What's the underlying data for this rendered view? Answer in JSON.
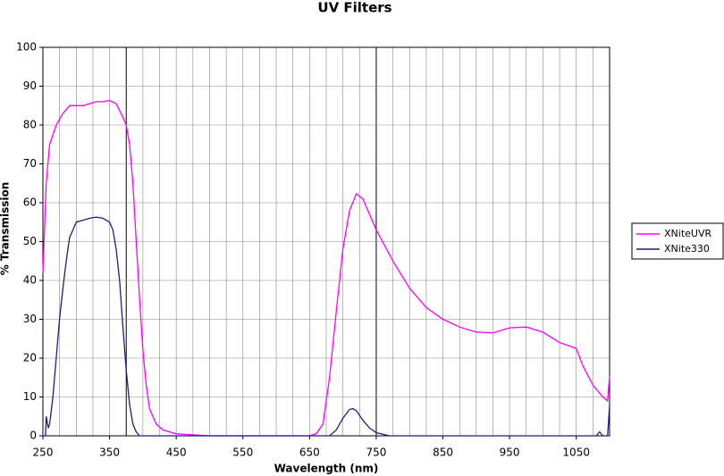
{
  "chart_data": {
    "type": "line",
    "title": "UV Filters",
    "x_label": "Wavelength (nm)",
    "y_label": "% Transmission",
    "xlim": [
      250,
      1100
    ],
    "ylim": [
      0,
      100
    ],
    "xticks": [
      250,
      350,
      450,
      550,
      650,
      750,
      850,
      950,
      1050
    ],
    "yticks": [
      0,
      10,
      20,
      30,
      40,
      50,
      60,
      70,
      80,
      90,
      100
    ],
    "xgrid_step": 25,
    "xgrid_major_step": 375,
    "grid": true,
    "legend": "right",
    "series": [
      {
        "name": "XNiteUVR",
        "color": "#ff00ff",
        "x": [
          250,
          255,
          260,
          270,
          280,
          290,
          300,
          310,
          320,
          330,
          340,
          350,
          360,
          370,
          375,
          380,
          385,
          390,
          395,
          400,
          405,
          410,
          420,
          430,
          450,
          500,
          600,
          650,
          660,
          670,
          680,
          690,
          700,
          710,
          720,
          730,
          740,
          750,
          775,
          800,
          825,
          850,
          875,
          900,
          925,
          950,
          975,
          1000,
          1025,
          1050,
          1060,
          1075,
          1090,
          1097,
          1100
        ],
        "values": [
          42,
          65,
          75,
          80,
          83,
          85,
          85,
          85,
          85.5,
          86,
          86,
          86.3,
          85.5,
          82,
          80,
          75,
          65,
          50,
          35,
          22,
          13,
          7,
          3,
          1.5,
          0.5,
          0,
          0,
          0,
          0.5,
          3,
          15,
          32,
          48,
          58,
          62.3,
          61,
          57,
          53,
          45,
          38,
          33,
          30,
          28,
          26.7,
          26.5,
          27.8,
          28,
          26.7,
          24,
          22.5,
          18,
          13,
          10,
          9,
          15.5
        ]
      },
      {
        "name": "XNite330",
        "color": "#1f1f7a",
        "x": [
          250,
          254,
          255,
          258,
          260,
          265,
          270,
          275,
          280,
          285,
          290,
          295,
          300,
          310,
          320,
          330,
          340,
          350,
          355,
          360,
          365,
          370,
          375,
          380,
          385,
          390,
          395,
          400,
          650,
          680,
          690,
          700,
          710,
          715,
          720,
          730,
          740,
          750,
          770,
          1080,
          1085,
          1090,
          1097,
          1100
        ],
        "values": [
          0,
          0,
          5,
          2,
          3,
          10,
          20,
          30,
          38,
          45,
          51,
          53,
          55,
          55.5,
          56,
          56.3,
          56,
          55,
          53,
          48,
          40,
          28,
          17,
          8,
          3,
          1,
          0,
          0,
          0,
          0,
          1.5,
          4.5,
          6.8,
          7,
          6.5,
          4,
          2,
          0.8,
          0,
          0,
          1,
          0,
          0,
          8
        ]
      }
    ]
  }
}
